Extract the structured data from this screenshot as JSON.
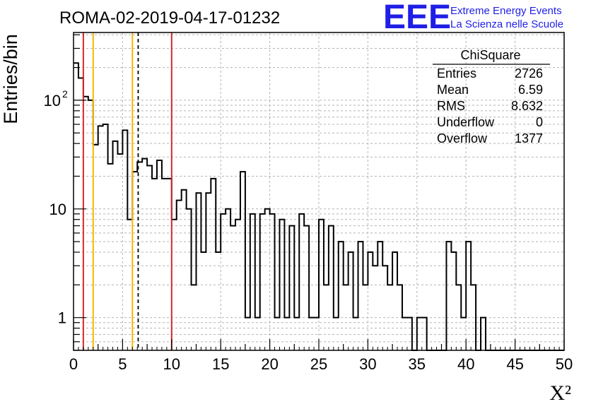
{
  "title": "ROMA-02-2019-04-17-01232",
  "logo": {
    "mark": "EEE",
    "line1": "Extreme Energy Events",
    "line2": "La Scienza nelle Scuole",
    "color": "#1f1fe6"
  },
  "stats_box": {
    "title": "ChiSquare",
    "rows": [
      {
        "label": "Entries",
        "value": "2726"
      },
      {
        "label": "Mean",
        "value": "6.59"
      },
      {
        "label": "RMS",
        "value": "8.632"
      },
      {
        "label": "Underflow",
        "value": "0"
      },
      {
        "label": "Overflow",
        "value": "1377"
      }
    ]
  },
  "chart_data": {
    "type": "histogram",
    "title": "ROMA-02-2019-04-17-01232",
    "xlabel": "X²",
    "ylabel": "Entries/bin",
    "xlim": [
      0,
      50
    ],
    "ylim": [
      0.5,
      420
    ],
    "yscale": "log",
    "grid": true,
    "bin_width": 0.5,
    "x_ticks": [
      "0",
      "5",
      "10",
      "15",
      "20",
      "25",
      "30",
      "35",
      "40",
      "45",
      "50"
    ],
    "y_ticks": [
      {
        "value": 1,
        "label": "1"
      },
      {
        "value": 10,
        "label": "10"
      },
      {
        "value": 100,
        "label": "10",
        "exponent": "2"
      }
    ],
    "values": [
      220,
      160,
      108,
      100,
      39,
      58,
      60,
      26,
      42,
      32,
      53,
      8,
      22,
      27,
      29,
      25,
      19,
      28,
      19,
      19,
      8,
      12,
      15,
      10,
      2,
      14,
      4,
      14,
      19,
      4,
      9,
      10,
      7,
      8,
      22,
      1,
      9,
      1,
      9,
      10,
      9,
      1,
      8,
      1,
      7,
      1,
      9,
      7,
      1,
      1,
      8,
      2,
      7,
      1,
      5,
      2,
      4,
      1,
      5,
      2,
      4,
      3,
      5,
      3,
      2,
      4,
      2,
      1,
      1,
      0,
      1,
      1,
      0,
      0,
      0,
      0,
      5,
      4,
      2,
      1,
      5,
      2,
      0,
      1,
      0,
      0,
      0,
      0,
      0,
      0,
      0,
      0,
      0,
      0,
      0,
      0,
      0,
      0,
      0,
      0
    ],
    "vertical_lines": [
      {
        "x": 1.0,
        "color": "#d62728",
        "style": "solid"
      },
      {
        "x": 2.0,
        "color": "#f5b800",
        "style": "solid"
      },
      {
        "x": 6.0,
        "color": "#f5b800",
        "style": "solid"
      },
      {
        "x": 6.59,
        "color": "#000000",
        "style": "dashed"
      },
      {
        "x": 10.0,
        "color": "#d62728",
        "style": "solid"
      }
    ]
  }
}
